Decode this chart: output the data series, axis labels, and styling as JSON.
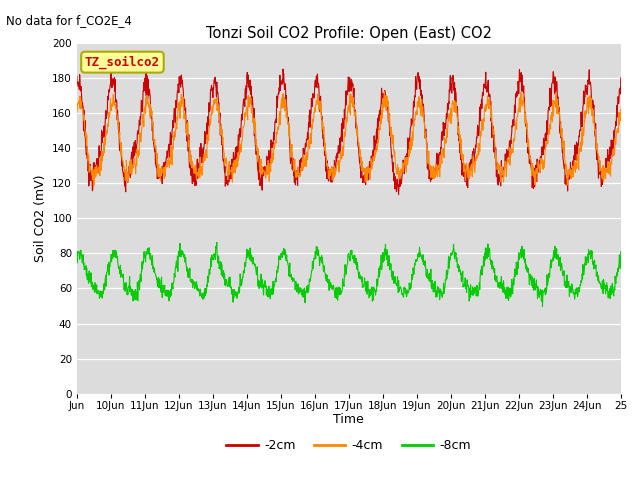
{
  "title": "Tonzi Soil CO2 Profile: Open (East) CO2",
  "top_left_text": "No data for f_CO2E_4",
  "legend_box_text": "TZ_soilco2",
  "xlabel": "Time",
  "ylabel": "Soil CO2 (mV)",
  "ylim": [
    0,
    200
  ],
  "yticks": [
    0,
    20,
    40,
    60,
    80,
    100,
    120,
    140,
    160,
    180,
    200
  ],
  "x_start_day": 9,
  "x_end_day": 25,
  "x_tick_days": [
    9,
    10,
    11,
    12,
    13,
    14,
    15,
    16,
    17,
    18,
    19,
    20,
    21,
    22,
    23,
    24,
    25
  ],
  "x_tick_labels": [
    "Jun",
    "10Jun",
    "11Jun",
    "12Jun",
    "13Jun",
    "14Jun",
    "15Jun",
    "16Jun",
    "17Jun",
    "18Jun",
    "19Jun",
    "20Jun",
    "21Jun",
    "22Jun",
    "23Jun",
    "24Jun",
    "25"
  ],
  "colors": {
    "red": "#cc0000",
    "orange": "#ff8800",
    "green": "#00cc00",
    "fig_bg": "#ffffff",
    "plot_bg": "#dcdcdc",
    "grid": "#ffffff"
  },
  "legend_entries": [
    {
      "label": "-2cm",
      "color": "#cc0000"
    },
    {
      "label": "-4cm",
      "color": "#ff8800"
    },
    {
      "label": "-8cm",
      "color": "#00cc00"
    }
  ],
  "red_base": 148,
  "red_amplitude": 26,
  "orange_base": 143,
  "orange_amplitude": 20,
  "green_base": 67,
  "green_amplitude": 11,
  "points_per_day": 96
}
